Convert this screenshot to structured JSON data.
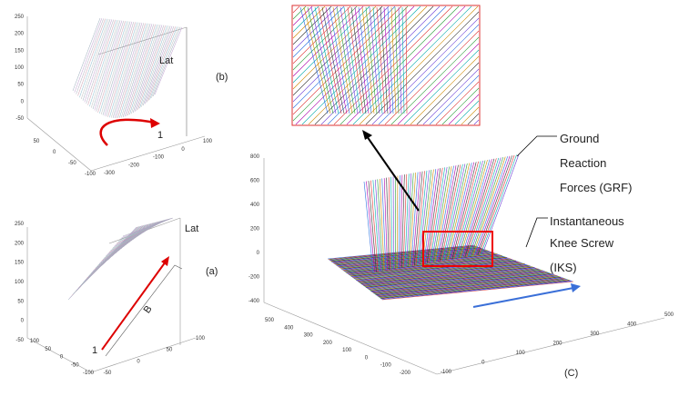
{
  "panels": {
    "b": {
      "label": "(b)",
      "lat": "Lat",
      "marker": "1",
      "z_ticks": [
        "250",
        "200",
        "150",
        "100",
        "50",
        "0",
        "-50"
      ],
      "x_ticks": [
        "50",
        "0",
        "-50",
        "-100"
      ],
      "y_ticks": [
        "-300",
        "-200",
        "-100",
        "0",
        "100"
      ]
    },
    "a": {
      "label": "(a)",
      "lat": "Lat",
      "marker": "1",
      "arrow_label": "B",
      "z_ticks": [
        "250",
        "200",
        "150",
        "100",
        "50",
        "0",
        "-50"
      ],
      "x_ticks": [
        "100",
        "50",
        "0",
        "-50",
        "-100"
      ],
      "y_ticks": [
        "-50",
        "0",
        "50",
        "100"
      ]
    },
    "c": {
      "label": "(C)",
      "z_ticks": [
        "800",
        "600",
        "400",
        "200",
        "0",
        "-200",
        "-400"
      ],
      "x_ticks": [
        "500",
        "400",
        "300",
        "200",
        "100",
        "0",
        "-100",
        "-200"
      ],
      "y_ticks": [
        "-100",
        "0",
        "100",
        "200",
        "300",
        "400",
        "500"
      ]
    }
  },
  "annotations": {
    "grf": [
      "Ground",
      "Reaction",
      "Forces (GRF)"
    ],
    "iks": [
      "Instantaneous",
      "Knee Screw",
      "(IKS)"
    ]
  }
}
